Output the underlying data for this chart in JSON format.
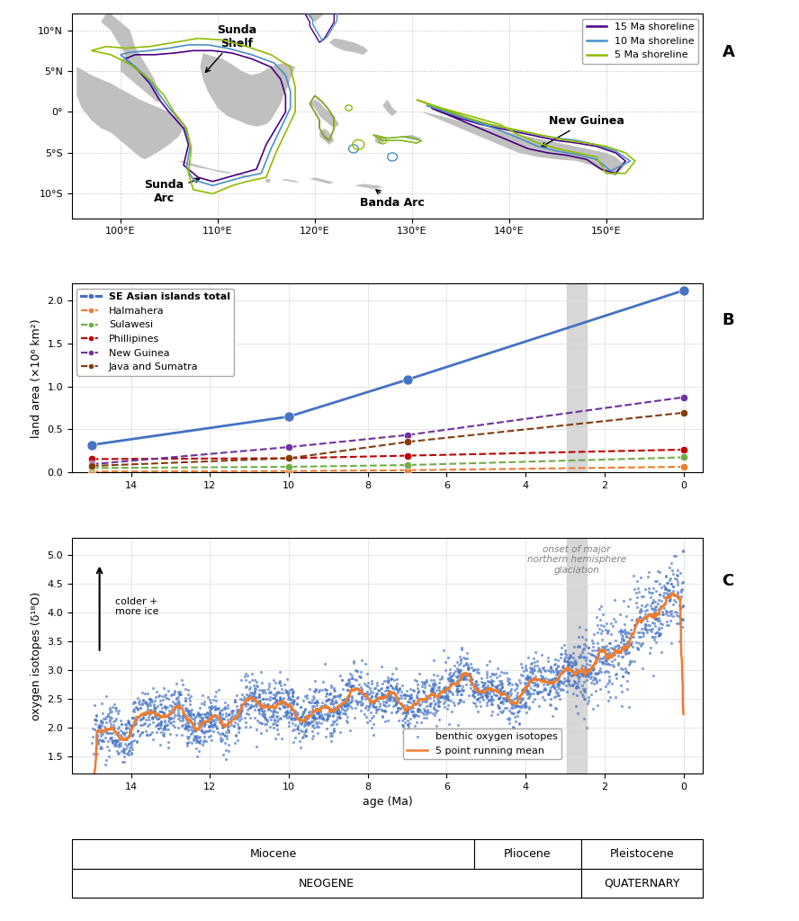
{
  "panel_A": {
    "xlim": [
      95,
      160
    ],
    "ylim": [
      -13,
      12
    ],
    "xticks": [
      100,
      110,
      120,
      130,
      140,
      150
    ],
    "yticks": [
      -10,
      -5,
      0,
      5,
      10
    ],
    "xticklabels": [
      "100°E",
      "110°E",
      "120°E",
      "130°E",
      "140°E",
      "150°E"
    ],
    "yticklabels": [
      "10°S",
      "5°S",
      "0°",
      "5°N",
      "10°N"
    ],
    "land_color": "#c0c0c0",
    "shoreline_15_color": "#4b0082",
    "shoreline_10_color": "#4a90c4",
    "shoreline_5_color": "#8fbc00",
    "legend_entries": [
      "15 Ma shoreline",
      "10 Ma shoreline",
      "5 Ma shoreline"
    ]
  },
  "panel_B": {
    "ylabel": "land area (×10⁶ km²)",
    "xlim": [
      15.5,
      -0.5
    ],
    "ylim": [
      0,
      2.2
    ],
    "yticks": [
      0.0,
      0.5,
      1.0,
      1.5,
      2.0
    ],
    "xticks": [
      14,
      12,
      10,
      8,
      6,
      4,
      2,
      0
    ],
    "glaciation_x": 2.7,
    "series": [
      {
        "name": "SE Asian islands total",
        "color": "#4472c4",
        "linestyle": "-",
        "linewidth": 2.0,
        "markersize": 8,
        "x": [
          15,
          10,
          7,
          0
        ],
        "y": [
          0.32,
          0.65,
          1.08,
          2.12
        ],
        "bold": true
      },
      {
        "name": "Halmahera",
        "color": "#ed7d31",
        "linestyle": "--",
        "linewidth": 1.5,
        "markersize": 6,
        "x": [
          15,
          10,
          7,
          0
        ],
        "y": [
          0.01,
          0.015,
          0.025,
          0.065
        ]
      },
      {
        "name": "Sulawesi",
        "color": "#70ad47",
        "linestyle": "--",
        "linewidth": 1.5,
        "markersize": 6,
        "x": [
          15,
          10,
          7,
          0
        ],
        "y": [
          0.05,
          0.065,
          0.085,
          0.175
        ]
      },
      {
        "name": "Phillipines",
        "color": "#c00000",
        "linestyle": "--",
        "linewidth": 1.5,
        "markersize": 6,
        "x": [
          15,
          10,
          7,
          0
        ],
        "y": [
          0.155,
          0.165,
          0.195,
          0.265
        ]
      },
      {
        "name": "New Guinea",
        "color": "#7030a0",
        "linestyle": "--",
        "linewidth": 1.5,
        "markersize": 6,
        "x": [
          15,
          10,
          7,
          0
        ],
        "y": [
          0.095,
          0.295,
          0.435,
          0.875
        ]
      },
      {
        "name": "Java and Sumatra",
        "color": "#843c0c",
        "linestyle": "--",
        "linewidth": 1.5,
        "markersize": 6,
        "x": [
          15,
          10,
          7,
          0
        ],
        "y": [
          0.075,
          0.165,
          0.355,
          0.695
        ]
      }
    ]
  },
  "panel_C": {
    "xlabel": "age (Ma)",
    "ylabel": "oxygen isotopes (δ¹⁸O)",
    "xlim": [
      15.5,
      -0.5
    ],
    "ylim": [
      1.2,
      5.3
    ],
    "yticks": [
      1.5,
      2.0,
      2.5,
      3.0,
      3.5,
      4.0,
      4.5,
      5.0
    ],
    "xticks": [
      14,
      12,
      10,
      8,
      6,
      4,
      2,
      0
    ],
    "glaciation_x": 2.7,
    "dot_color": "#4472c4",
    "line_color": "#ed7d31",
    "glaciation_text": "onset of major\nnorthern hemisphere\nglaciation",
    "arrow_text": "colder +\nmore ice",
    "legend_dot": "benthic oxygen isotopes",
    "legend_line": "5 point running mean"
  },
  "panel_labels": [
    "A",
    "B",
    "C"
  ],
  "time_scale": {
    "miocene_end_Ma": 5.3,
    "pliocene_end_Ma": 2.6,
    "axis_start_Ma": 15.5,
    "axis_end_Ma": -0.5
  }
}
